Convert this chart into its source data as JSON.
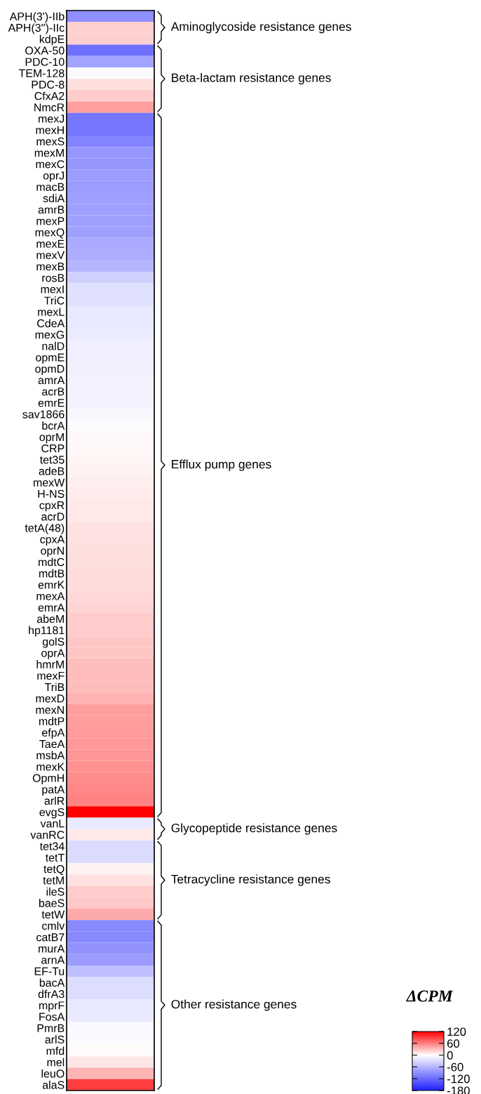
{
  "chart_data": {
    "type": "heatmap",
    "categories": [
      null
    ],
    "y_categories": [
      "APH(3')-IIb",
      "APH(3'')-IIc",
      "kdpE",
      "OXA-50",
      "PDC-10",
      "TEM-128",
      "PDC-8",
      "CfxA2",
      "NmcR",
      "mexJ",
      "mexH",
      "mexS",
      "mexM",
      "mexC",
      "oprJ",
      "macB",
      "sdiA",
      "amrB",
      "mexP",
      "mexQ",
      "mexE",
      "mexV",
      "mexB",
      "rosB",
      "mexI",
      "TriC",
      "mexL",
      "CdeA",
      "mexG",
      "nalD",
      "opmE",
      "opmD",
      "amrA",
      "acrB",
      "emrE",
      "sav1866",
      "bcrA",
      "oprM",
      "CRP",
      "tet35",
      "adeB",
      "mexW",
      "H-NS",
      "cpxR",
      "acrD",
      "tetA(48)",
      "cpxA",
      "oprN",
      "mdtC",
      "mdtB",
      "emrK",
      "mexA",
      "emrA",
      "abeM",
      "hp1181",
      "golS",
      "oprA",
      "hmrM",
      "mexF",
      "TriB",
      "mexD",
      "mexN",
      "mdtP",
      "efpA",
      "TaeA",
      "msbA",
      "mexK",
      "OpmH",
      "patA",
      "arlR",
      "evgS",
      "vanL",
      "vanRC",
      "tet34",
      "tetT",
      "tetQ",
      "tetM",
      "ileS",
      "baeS",
      "tetW",
      "cmlv",
      "catB7",
      "murA",
      "arnA",
      "EF-Tu",
      "bacA",
      "dfrA3",
      "mprF",
      "FosA",
      "PmrB",
      "arlS",
      "mfd",
      "mel",
      "leuO",
      "alaS"
    ],
    "cells": [
      [
        -90
      ],
      [
        22
      ],
      [
        22
      ],
      [
        -115
      ],
      [
        -75
      ],
      [
        -4
      ],
      [
        15
      ],
      [
        24
      ],
      [
        45
      ],
      [
        -110
      ],
      [
        -110
      ],
      [
        -100
      ],
      [
        -85
      ],
      [
        -85
      ],
      [
        -80
      ],
      [
        -80
      ],
      [
        -78
      ],
      [
        -78
      ],
      [
        -76
      ],
      [
        -76
      ],
      [
        -68
      ],
      [
        -66
      ],
      [
        -60
      ],
      [
        -38
      ],
      [
        -25
      ],
      [
        -25
      ],
      [
        -18
      ],
      [
        -18
      ],
      [
        -17
      ],
      [
        -13
      ],
      [
        -13
      ],
      [
        -12
      ],
      [
        -10
      ],
      [
        -10
      ],
      [
        -9
      ],
      [
        -6
      ],
      [
        -3
      ],
      [
        3
      ],
      [
        3
      ],
      [
        5
      ],
      [
        6
      ],
      [
        8
      ],
      [
        9
      ],
      [
        11
      ],
      [
        11
      ],
      [
        14
      ],
      [
        14
      ],
      [
        15
      ],
      [
        15
      ],
      [
        16
      ],
      [
        16
      ],
      [
        19
      ],
      [
        20
      ],
      [
        24
      ],
      [
        24
      ],
      [
        27
      ],
      [
        27
      ],
      [
        30
      ],
      [
        31
      ],
      [
        32
      ],
      [
        36
      ],
      [
        45
      ],
      [
        46
      ],
      [
        47
      ],
      [
        48
      ],
      [
        49
      ],
      [
        52
      ],
      [
        54
      ],
      [
        56
      ],
      [
        58
      ],
      [
        120
      ],
      [
        -18
      ],
      [
        10
      ],
      [
        -30
      ],
      [
        -28
      ],
      [
        6
      ],
      [
        14
      ],
      [
        25
      ],
      [
        26
      ],
      [
        40
      ],
      [
        -95
      ],
      [
        -95
      ],
      [
        -88
      ],
      [
        -80
      ],
      [
        -52
      ],
      [
        -28
      ],
      [
        -27
      ],
      [
        -18
      ],
      [
        -16
      ],
      [
        -5
      ],
      [
        -4
      ],
      [
        2
      ],
      [
        12
      ],
      [
        35
      ],
      [
        90
      ]
    ],
    "clim": [
      -180,
      120
    ],
    "cticks": [
      120,
      60,
      0,
      -60,
      -120,
      -180
    ],
    "clabel": "ΔCPM",
    "annotations": [
      "Aminoglycoside resistance genes",
      "Beta-lactam resistance genes",
      "Efflux pump genes",
      "Glycopeptide resistance genes",
      "Tetracycline resistance genes",
      "Other resistance genes"
    ]
  }
}
